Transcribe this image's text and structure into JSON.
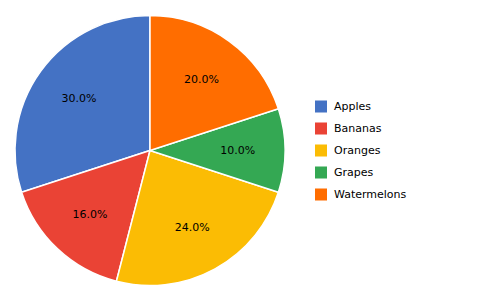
{
  "chart_data": {
    "type": "pie",
    "categories": [
      "Apples",
      "Bananas",
      "Oranges",
      "Grapes",
      "Watermelons"
    ],
    "values": [
      30.0,
      16.0,
      24.0,
      10.0,
      20.0
    ],
    "value_labels": [
      "30.0%",
      "16.0%",
      "24.0%",
      "10.0%",
      "20.0%"
    ],
    "colors": [
      "#4472C4",
      "#EA4335",
      "#FBBC04",
      "#34A853",
      "#FF6D00"
    ],
    "data_labels": true,
    "legend": "right"
  }
}
